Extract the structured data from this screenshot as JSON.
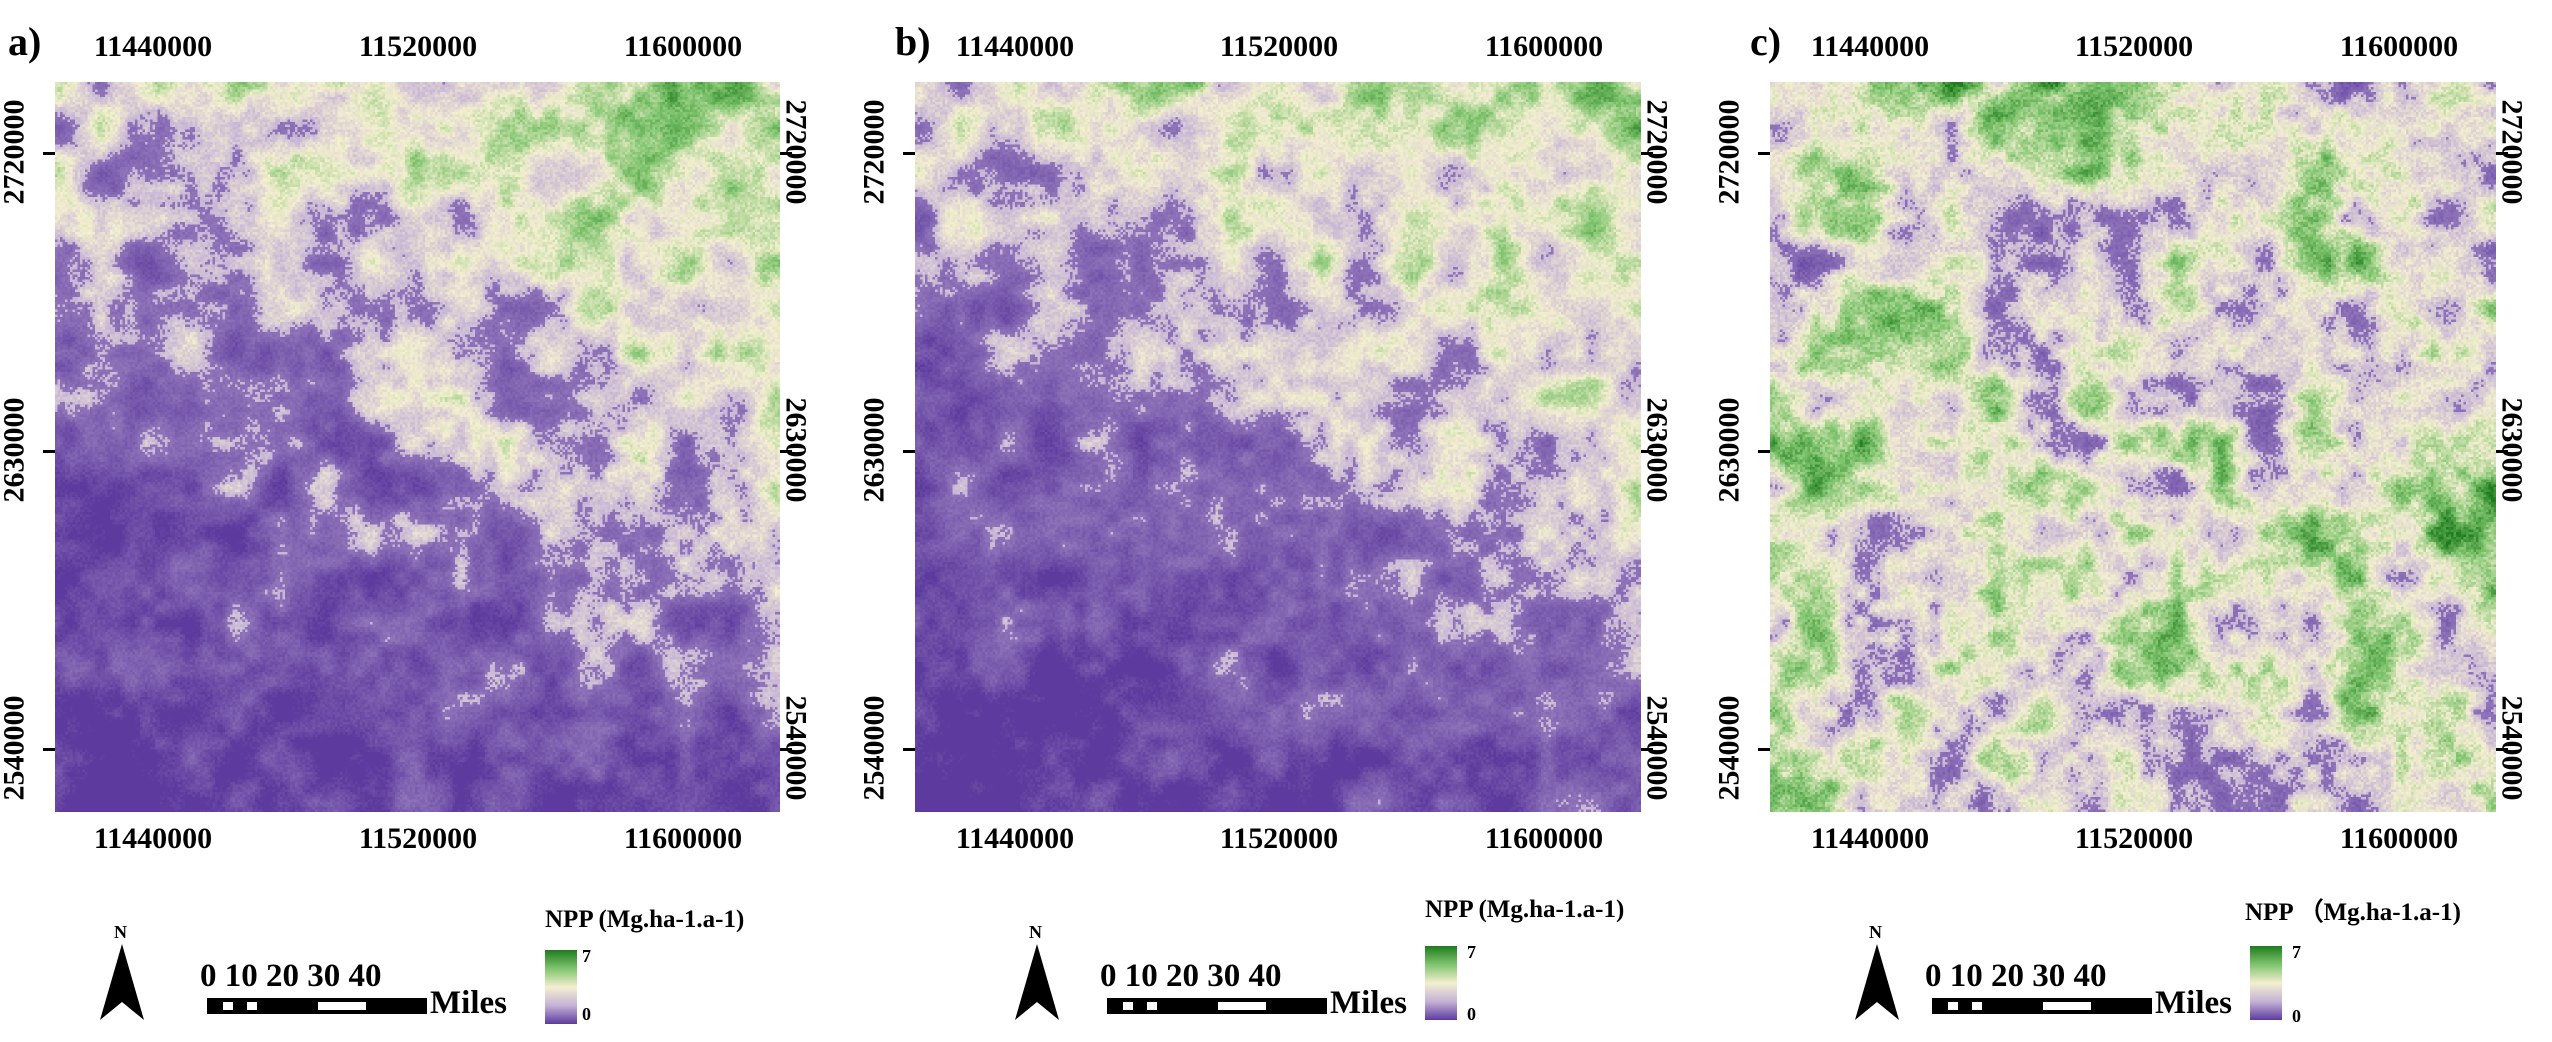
{
  "figure": {
    "legend_title_ab": "NPP (Mg.ha-1.a-1)",
    "legend_title_c": "NPP （Mg.ha-1.a-1)",
    "legend_max": "7",
    "legend_min": "0",
    "legend_colors": [
      "#1e7b1e",
      "#7fc46e",
      "#f4efd0",
      "#c5b2d6",
      "#5d3b9e"
    ],
    "map_base_color": "#5b3b9c",
    "north_letter": "N",
    "scale_numbers": "0  10  20  30  40",
    "scale_unit": "Miles"
  },
  "panels": [
    {
      "label": "a)",
      "top_ticks": [
        "11440000",
        "11520000",
        "11600000"
      ],
      "bottom_ticks": [
        "11440000",
        "11520000",
        "11600000"
      ],
      "left_ticks": [
        "2720000",
        "2630000",
        "2540000"
      ],
      "right_ticks": [
        "2720000",
        "2630000",
        "2540000"
      ],
      "green_level": 0.32
    },
    {
      "label": "b)",
      "top_ticks": [
        "11440000",
        "11520000",
        "11600000"
      ],
      "bottom_ticks": [
        "11440000",
        "11520000",
        "11600000"
      ],
      "left_ticks": [
        "2720000",
        "2630000",
        "2540000"
      ],
      "right_ticks": [
        "2720000",
        "2630000",
        "2540000"
      ],
      "green_level": 0.32
    },
    {
      "label": "c)",
      "top_ticks": [
        "11440000",
        "11520000",
        "11600000"
      ],
      "bottom_ticks": [
        "11440000",
        "11520000",
        "11600000"
      ],
      "left_ticks": [
        "2720000",
        "2630000",
        "2540000"
      ],
      "right_ticks": [
        "2720000",
        "2630000",
        "2540000"
      ],
      "green_level": 0.55
    }
  ]
}
